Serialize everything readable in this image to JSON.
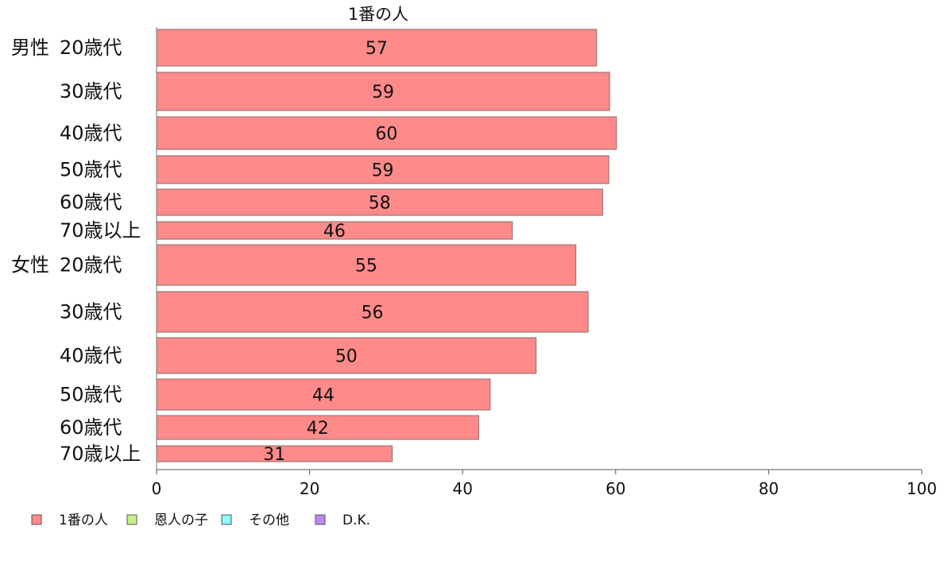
{
  "chart_data": {
    "type": "bar",
    "orientation": "horizontal",
    "title": "1番の人",
    "groups": [
      {
        "label": "男性",
        "start_index": 0
      },
      {
        "label": "女性",
        "start_index": 6
      }
    ],
    "categories": [
      "20歳代",
      "30歳代",
      "40歳代",
      "50歳代",
      "60歳代",
      "70歳以上",
      "20歳代",
      "30歳代",
      "40歳代",
      "50歳代",
      "60歳代",
      "70歳以上"
    ],
    "series": [
      {
        "name": "1番の人",
        "color": "#ff8a8a",
        "values": [
          57.5,
          59.2,
          60.1,
          59.1,
          58.3,
          46.5,
          54.8,
          56.4,
          49.6,
          43.6,
          42.1,
          30.8
        ],
        "labels": [
          "57",
          "59",
          "60",
          "59",
          "58",
          "46",
          "55",
          "56",
          "50",
          "44",
          "42",
          "31"
        ]
      }
    ],
    "xlim": [
      0,
      100
    ],
    "xticks": [
      0,
      20,
      40,
      60,
      80,
      100
    ],
    "grid": false,
    "legend_position": "bottom-left",
    "legend": [
      {
        "label": "1番の人",
        "color": "#ff8a8a"
      },
      {
        "label": "恩人の子",
        "color": "#c6f28a"
      },
      {
        "label": "その他",
        "color": "#8afcfc"
      },
      {
        "label": "D.K.",
        "color": "#b98af2"
      }
    ]
  }
}
